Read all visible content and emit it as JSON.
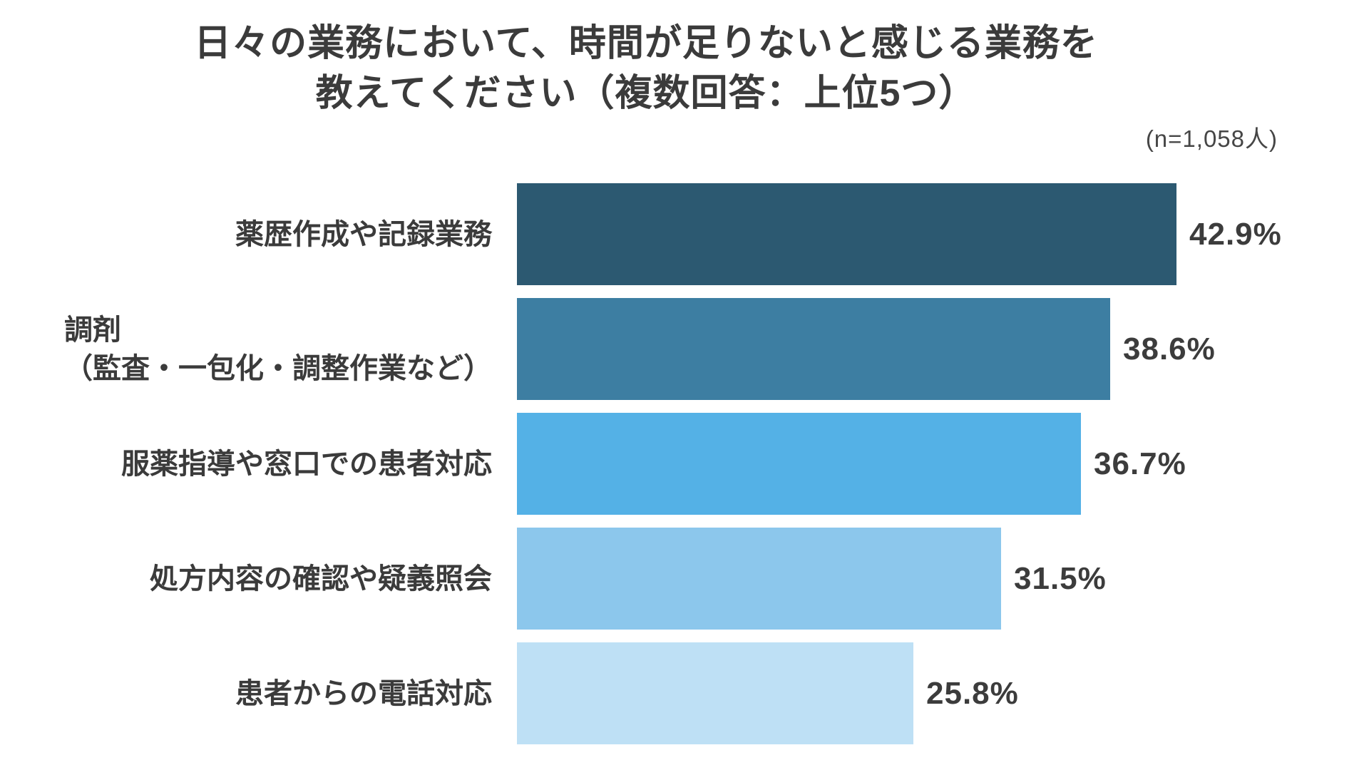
{
  "title": {
    "line1": "日々の業務において、時間が足りないと感じる業務を",
    "line2": "教えてください（複数回答：上位5つ）"
  },
  "sample_note": "(n=1,058人)",
  "chart_data": {
    "type": "bar",
    "orientation": "horizontal",
    "title": "日々の業務において、時間が足りないと感じる業務を教えてください（複数回答：上位5つ）",
    "annotation": "(n=1,058人)",
    "categories": [
      "薬歴作成や記録業務",
      "調剤（監査・一包化・調整作業など）",
      "服薬指導や窓口での患者対応",
      "処方内容の確認や疑義照会",
      "患者からの電話対応"
    ],
    "category_label_lines": [
      [
        "薬歴作成や記録業務"
      ],
      [
        "調剤",
        "（監査・一包化・調整作業など）"
      ],
      [
        "服薬指導や窓口での患者対応"
      ],
      [
        "処方内容の確認や疑義照会"
      ],
      [
        "患者からの電話対応"
      ]
    ],
    "values": [
      42.9,
      38.6,
      36.7,
      31.5,
      25.8
    ],
    "value_labels": [
      "42.9%",
      "38.6%",
      "36.7%",
      "31.5%",
      "25.8%"
    ],
    "bar_colors": [
      "#2C5971",
      "#3D7EA2",
      "#54B1E6",
      "#8CC7EC",
      "#BEE0F5"
    ],
    "text_color": "#3B3B3B",
    "xlim": [
      0,
      47.5
    ],
    "grid": false,
    "legend": false,
    "value_label_position": "outside-end"
  }
}
